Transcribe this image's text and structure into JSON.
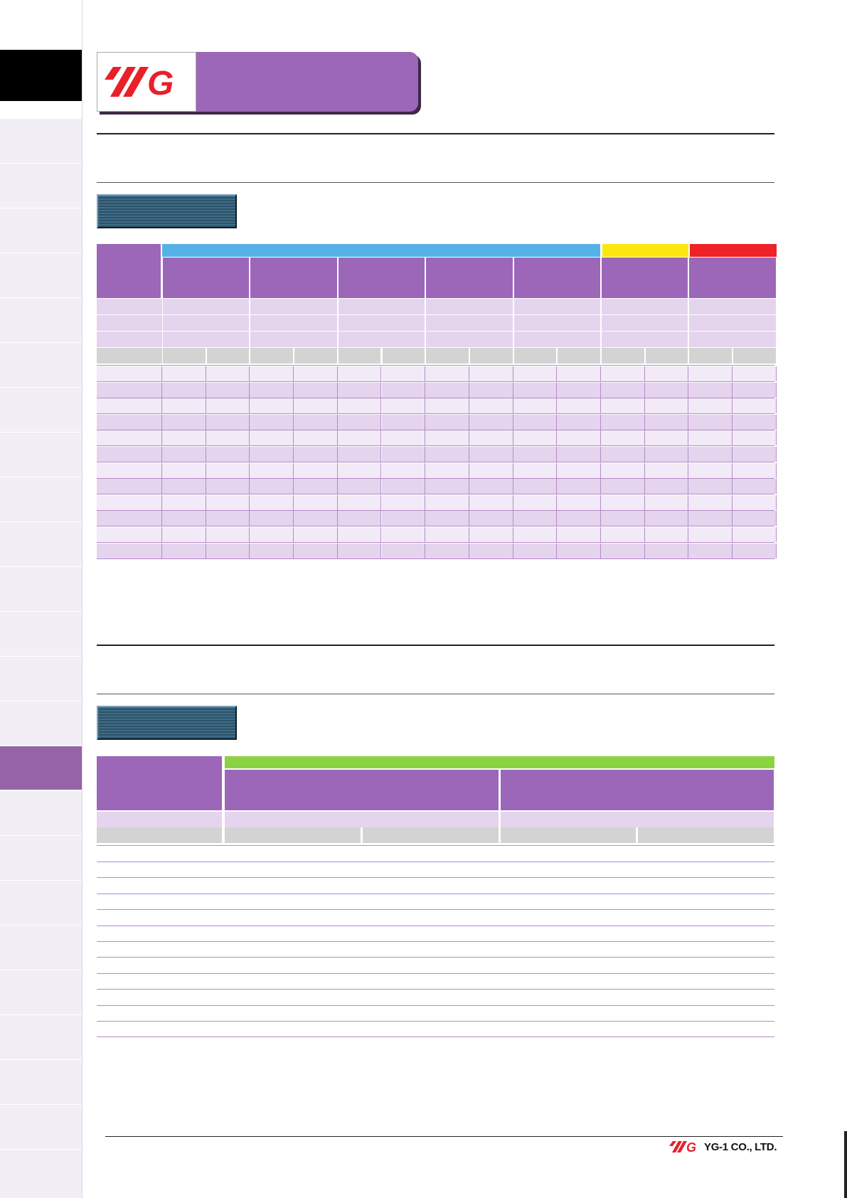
{
  "brand": {
    "logo_text": "YG",
    "company_name": "YG-1 CO., LTD.",
    "logo_color": "#e8202a"
  },
  "colors": {
    "banner_purple": "#9c66b9",
    "strip_blue": "#55b2e6",
    "strip_yellow": "#fce611",
    "strip_red": "#ee2227",
    "strip_green": "#8bd343",
    "row_lavender": "#e5d4ee",
    "row_light": "#f2eaf6",
    "subheader_gray": "#d3d3d3",
    "active_tab": "#9464a6"
  },
  "sidebar": {
    "active_tab_index": 14
  },
  "table1": {
    "group_strips": [
      "blue",
      "yellow",
      "red"
    ],
    "column_groups": 7,
    "sub_columns_per_group": 2,
    "data_rows": 12
  },
  "table2": {
    "group_strips": [
      "green"
    ],
    "column_groups": 2,
    "sub_columns_per_group": 2,
    "data_rows": 12
  }
}
